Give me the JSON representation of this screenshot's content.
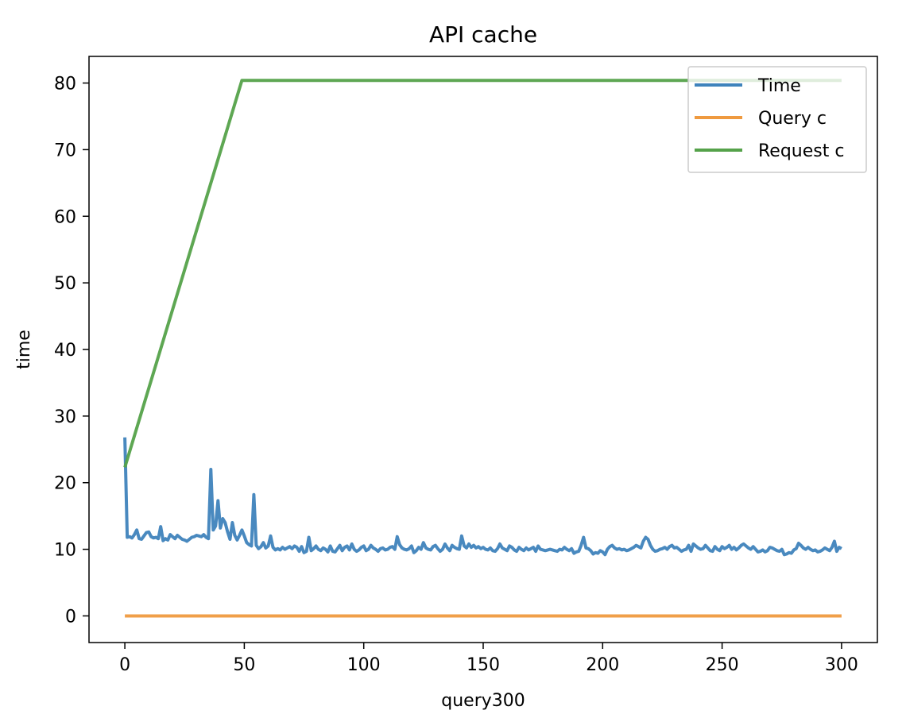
{
  "chart_data": {
    "type": "line",
    "title": "API cache",
    "xlabel": "query300",
    "ylabel": "time",
    "xlim": [
      -15,
      315
    ],
    "ylim": [
      -4,
      84
    ],
    "x_ticks": [
      0,
      50,
      100,
      150,
      200,
      250,
      300
    ],
    "y_ticks": [
      0,
      10,
      20,
      30,
      40,
      50,
      60,
      70,
      80
    ],
    "grid": false,
    "legend_position": "top-right",
    "series": [
      {
        "name": "Time",
        "color": "#3f83bc",
        "points": [
          [
            0,
            26.8
          ],
          [
            1,
            11.8
          ],
          [
            2,
            11.9
          ],
          [
            3,
            11.7
          ],
          [
            4,
            12.2
          ],
          [
            5,
            12.9
          ],
          [
            6,
            11.6
          ],
          [
            7,
            11.5
          ],
          [
            8,
            12.0
          ],
          [
            9,
            12.5
          ],
          [
            10,
            12.6
          ],
          [
            11,
            11.9
          ],
          [
            12,
            11.7
          ],
          [
            13,
            11.8
          ],
          [
            14,
            11.6
          ],
          [
            15,
            13.4
          ],
          [
            16,
            11.3
          ],
          [
            17,
            11.6
          ],
          [
            18,
            11.4
          ],
          [
            19,
            12.2
          ],
          [
            20,
            11.9
          ],
          [
            21,
            11.6
          ],
          [
            22,
            12.1
          ],
          [
            23,
            11.8
          ],
          [
            24,
            11.5
          ],
          [
            25,
            11.4
          ],
          [
            26,
            11.2
          ],
          [
            27,
            11.5
          ],
          [
            28,
            11.8
          ],
          [
            29,
            11.9
          ],
          [
            30,
            12.1
          ],
          [
            31,
            12.0
          ],
          [
            32,
            11.9
          ],
          [
            33,
            12.2
          ],
          [
            34,
            11.8
          ],
          [
            35,
            11.6
          ],
          [
            36,
            22.0
          ],
          [
            37,
            12.9
          ],
          [
            38,
            13.5
          ],
          [
            39,
            17.3
          ],
          [
            40,
            13.2
          ],
          [
            41,
            14.6
          ],
          [
            42,
            14.0
          ],
          [
            43,
            12.6
          ],
          [
            44,
            11.5
          ],
          [
            45,
            14.0
          ],
          [
            46,
            12.1
          ],
          [
            47,
            11.4
          ],
          [
            48,
            12.1
          ],
          [
            49,
            12.9
          ],
          [
            50,
            12.0
          ],
          [
            51,
            11.0
          ],
          [
            52,
            10.7
          ],
          [
            53,
            10.5
          ],
          [
            54,
            18.2
          ],
          [
            55,
            10.6
          ],
          [
            56,
            10.1
          ],
          [
            57,
            10.4
          ],
          [
            58,
            11.0
          ],
          [
            59,
            10.2
          ],
          [
            60,
            10.5
          ],
          [
            61,
            12.0
          ],
          [
            62,
            10.3
          ],
          [
            63,
            9.9
          ],
          [
            64,
            10.1
          ],
          [
            65,
            9.9
          ],
          [
            66,
            10.3
          ],
          [
            67,
            10.0
          ],
          [
            68,
            10.2
          ],
          [
            69,
            10.4
          ],
          [
            70,
            10.1
          ],
          [
            71,
            10.5
          ],
          [
            72,
            10.3
          ],
          [
            73,
            9.7
          ],
          [
            74,
            10.4
          ],
          [
            75,
            9.5
          ],
          [
            76,
            9.7
          ],
          [
            77,
            11.8
          ],
          [
            78,
            9.8
          ],
          [
            79,
            10.1
          ],
          [
            80,
            10.5
          ],
          [
            81,
            10.0
          ],
          [
            82,
            9.8
          ],
          [
            83,
            10.2
          ],
          [
            84,
            10.0
          ],
          [
            85,
            9.6
          ],
          [
            86,
            10.5
          ],
          [
            87,
            9.7
          ],
          [
            88,
            9.6
          ],
          [
            89,
            10.1
          ],
          [
            90,
            10.6
          ],
          [
            91,
            9.8
          ],
          [
            92,
            10.3
          ],
          [
            93,
            10.5
          ],
          [
            94,
            9.9
          ],
          [
            95,
            10.8
          ],
          [
            96,
            10.0
          ],
          [
            97,
            9.7
          ],
          [
            98,
            9.9
          ],
          [
            99,
            10.3
          ],
          [
            100,
            10.5
          ],
          [
            101,
            9.8
          ],
          [
            102,
            10.0
          ],
          [
            103,
            10.6
          ],
          [
            104,
            10.2
          ],
          [
            105,
            10.0
          ],
          [
            106,
            9.7
          ],
          [
            107,
            10.1
          ],
          [
            108,
            10.2
          ],
          [
            109,
            9.9
          ],
          [
            110,
            10.0
          ],
          [
            111,
            10.3
          ],
          [
            112,
            10.4
          ],
          [
            113,
            10.0
          ],
          [
            114,
            11.9
          ],
          [
            115,
            10.7
          ],
          [
            116,
            10.2
          ],
          [
            117,
            10.0
          ],
          [
            118,
            9.9
          ],
          [
            119,
            10.1
          ],
          [
            120,
            10.5
          ],
          [
            121,
            9.5
          ],
          [
            122,
            9.8
          ],
          [
            123,
            10.3
          ],
          [
            124,
            10.0
          ],
          [
            125,
            11.0
          ],
          [
            126,
            10.2
          ],
          [
            127,
            10.0
          ],
          [
            128,
            9.9
          ],
          [
            129,
            10.4
          ],
          [
            130,
            10.6
          ],
          [
            131,
            10.1
          ],
          [
            132,
            9.7
          ],
          [
            133,
            10.0
          ],
          [
            134,
            10.8
          ],
          [
            135,
            10.2
          ],
          [
            136,
            9.8
          ],
          [
            137,
            10.6
          ],
          [
            138,
            10.3
          ],
          [
            139,
            10.1
          ],
          [
            140,
            10.0
          ],
          [
            141,
            12.0
          ],
          [
            142,
            10.5
          ],
          [
            143,
            10.2
          ],
          [
            144,
            10.8
          ],
          [
            145,
            10.3
          ],
          [
            146,
            10.6
          ],
          [
            147,
            10.2
          ],
          [
            148,
            10.4
          ],
          [
            149,
            10.1
          ],
          [
            150,
            10.3
          ],
          [
            151,
            10.0
          ],
          [
            152,
            9.9
          ],
          [
            153,
            10.2
          ],
          [
            154,
            9.8
          ],
          [
            155,
            9.7
          ],
          [
            156,
            10.1
          ],
          [
            157,
            10.8
          ],
          [
            158,
            10.2
          ],
          [
            159,
            10.0
          ],
          [
            160,
            9.8
          ],
          [
            161,
            10.5
          ],
          [
            162,
            10.3
          ],
          [
            163,
            9.9
          ],
          [
            164,
            9.7
          ],
          [
            165,
            10.3
          ],
          [
            166,
            10.0
          ],
          [
            167,
            9.8
          ],
          [
            168,
            10.2
          ],
          [
            169,
            9.9
          ],
          [
            170,
            10.1
          ],
          [
            171,
            10.3
          ],
          [
            172,
            9.7
          ],
          [
            173,
            10.5
          ],
          [
            174,
            10.0
          ],
          [
            175,
            9.9
          ],
          [
            176,
            9.8
          ],
          [
            177,
            9.9
          ],
          [
            178,
            10.0
          ],
          [
            179,
            9.9
          ],
          [
            180,
            9.8
          ],
          [
            181,
            9.7
          ],
          [
            182,
            10.0
          ],
          [
            183,
            9.9
          ],
          [
            184,
            10.3
          ],
          [
            185,
            10.0
          ],
          [
            186,
            9.8
          ],
          [
            187,
            10.1
          ],
          [
            188,
            9.4
          ],
          [
            189,
            9.6
          ],
          [
            190,
            9.7
          ],
          [
            191,
            10.6
          ],
          [
            192,
            11.8
          ],
          [
            193,
            10.2
          ],
          [
            194,
            10.1
          ],
          [
            195,
            9.8
          ],
          [
            196,
            9.3
          ],
          [
            197,
            9.5
          ],
          [
            198,
            9.4
          ],
          [
            199,
            9.8
          ],
          [
            200,
            9.6
          ],
          [
            201,
            9.2
          ],
          [
            202,
            10.0
          ],
          [
            203,
            10.4
          ],
          [
            204,
            10.6
          ],
          [
            205,
            10.2
          ],
          [
            206,
            10.0
          ],
          [
            207,
            10.1
          ],
          [
            208,
            9.9
          ],
          [
            209,
            10.0
          ],
          [
            210,
            9.8
          ],
          [
            211,
            9.9
          ],
          [
            212,
            10.1
          ],
          [
            213,
            10.3
          ],
          [
            214,
            10.6
          ],
          [
            215,
            10.4
          ],
          [
            216,
            10.2
          ],
          [
            217,
            11.2
          ],
          [
            218,
            11.8
          ],
          [
            219,
            11.5
          ],
          [
            220,
            10.6
          ],
          [
            221,
            10.0
          ],
          [
            222,
            9.7
          ],
          [
            223,
            9.8
          ],
          [
            224,
            10.0
          ],
          [
            225,
            10.1
          ],
          [
            226,
            10.3
          ],
          [
            227,
            10.0
          ],
          [
            228,
            10.4
          ],
          [
            229,
            10.6
          ],
          [
            230,
            10.2
          ],
          [
            231,
            10.3
          ],
          [
            232,
            10.0
          ],
          [
            233,
            9.7
          ],
          [
            234,
            9.9
          ],
          [
            235,
            10.0
          ],
          [
            236,
            10.6
          ],
          [
            237,
            9.7
          ],
          [
            238,
            10.8
          ],
          [
            239,
            10.5
          ],
          [
            240,
            10.2
          ],
          [
            241,
            10.0
          ],
          [
            242,
            10.1
          ],
          [
            243,
            10.6
          ],
          [
            244,
            10.2
          ],
          [
            245,
            9.8
          ],
          [
            246,
            9.7
          ],
          [
            247,
            10.4
          ],
          [
            248,
            10.0
          ],
          [
            249,
            9.8
          ],
          [
            250,
            10.4
          ],
          [
            251,
            10.1
          ],
          [
            252,
            10.3
          ],
          [
            253,
            10.6
          ],
          [
            254,
            10.0
          ],
          [
            255,
            10.3
          ],
          [
            256,
            9.9
          ],
          [
            257,
            10.2
          ],
          [
            258,
            10.6
          ],
          [
            259,
            10.8
          ],
          [
            260,
            10.5
          ],
          [
            261,
            10.2
          ],
          [
            262,
            10.0
          ],
          [
            263,
            10.4
          ],
          [
            264,
            10.0
          ],
          [
            265,
            9.6
          ],
          [
            266,
            9.7
          ],
          [
            267,
            9.9
          ],
          [
            268,
            9.6
          ],
          [
            269,
            9.8
          ],
          [
            270,
            10.3
          ],
          [
            271,
            10.2
          ],
          [
            272,
            10.0
          ],
          [
            273,
            9.8
          ],
          [
            274,
            9.7
          ],
          [
            275,
            10.0
          ],
          [
            276,
            9.2
          ],
          [
            277,
            9.3
          ],
          [
            278,
            9.5
          ],
          [
            279,
            9.4
          ],
          [
            280,
            9.9
          ],
          [
            281,
            10.1
          ],
          [
            282,
            10.9
          ],
          [
            283,
            10.6
          ],
          [
            284,
            10.2
          ],
          [
            285,
            10.0
          ],
          [
            286,
            10.3
          ],
          [
            287,
            10.0
          ],
          [
            288,
            9.8
          ],
          [
            289,
            9.9
          ],
          [
            290,
            9.6
          ],
          [
            291,
            9.7
          ],
          [
            292,
            9.9
          ],
          [
            293,
            10.2
          ],
          [
            294,
            10.0
          ],
          [
            295,
            9.8
          ],
          [
            296,
            10.3
          ],
          [
            297,
            11.2
          ],
          [
            298,
            9.7
          ],
          [
            299,
            10.3
          ],
          [
            300,
            10.1
          ]
        ]
      },
      {
        "name": "Query c",
        "color": "#ef9a3f",
        "points": [
          [
            0,
            0
          ],
          [
            300,
            0
          ]
        ]
      },
      {
        "name": "Request c",
        "color": "#55a24a",
        "points": [
          [
            0,
            22.3
          ],
          [
            49,
            80.4
          ],
          [
            300,
            80.4
          ]
        ]
      }
    ]
  }
}
